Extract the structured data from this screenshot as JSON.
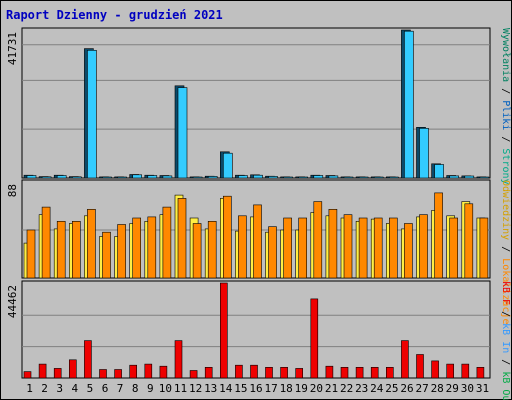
{
  "chart_data": [
    {
      "type": "bar",
      "title": "Raport Dzienny -  grudzień  2021",
      "categories": [
        "1",
        "2",
        "3",
        "4",
        "5",
        "6",
        "7",
        "8",
        "9",
        "10",
        "11",
        "12",
        "13",
        "14",
        "15",
        "16",
        "17",
        "18",
        "19",
        "20",
        "21",
        "22",
        "23",
        "24",
        "25",
        "26",
        "27",
        "28",
        "29",
        "30",
        "31"
      ],
      "weekend_categories": [
        "4",
        "5",
        "11",
        "12",
        "18",
        "19",
        "25",
        "26"
      ],
      "ymax_label": "41731",
      "ylim": [
        0,
        41731
      ],
      "series": [
        {
          "name": "Wywołania",
          "color": "#0b4a6a",
          "values": [
            800,
            400,
            800,
            400,
            36500,
            300,
            300,
            1000,
            800,
            700,
            26000,
            300,
            500,
            7400,
            800,
            900,
            500,
            300,
            300,
            800,
            700,
            300,
            300,
            300,
            300,
            41731,
            14300,
            4000,
            700,
            600,
            300
          ]
        },
        {
          "name": "Pliki",
          "color": "#33ccff",
          "values": [
            700,
            350,
            700,
            350,
            36000,
            250,
            250,
            900,
            700,
            600,
            25500,
            250,
            450,
            7000,
            700,
            800,
            450,
            250,
            250,
            700,
            600,
            250,
            250,
            250,
            250,
            41400,
            14000,
            3800,
            600,
            550,
            250
          ]
        }
      ],
      "legend": [
        "Wywołania",
        "Pliki",
        "Strony"
      ]
    },
    {
      "type": "bar",
      "ymax_label": "88",
      "ylim": [
        0,
        88
      ],
      "series": [
        {
          "name": "Odwiedziny",
          "color": "#ffee44",
          "values": [
            32,
            58,
            45,
            50,
            57,
            38,
            38,
            50,
            52,
            58,
            76,
            55,
            45,
            73,
            43,
            56,
            42,
            44,
            44,
            60,
            57,
            55,
            52,
            54,
            50,
            45,
            56,
            62,
            57,
            70,
            55
          ]
        },
        {
          "name": "Lokalizacje",
          "color": "#ff8800",
          "values": [
            44,
            65,
            52,
            52,
            63,
            42,
            49,
            55,
            56,
            65,
            73,
            50,
            52,
            75,
            57,
            67,
            47,
            55,
            55,
            70,
            63,
            58,
            55,
            55,
            55,
            50,
            58,
            78,
            55,
            68,
            55
          ]
        }
      ],
      "legend": [
        "Odwiedziny",
        "Lokalizacje"
      ]
    },
    {
      "type": "bar",
      "ymax_label": "44462",
      "ylim": [
        0,
        44462
      ],
      "series": [
        {
          "name": "kB F",
          "color": "#ee0000",
          "values": [
            3000,
            6500,
            4500,
            8500,
            17500,
            4000,
            4000,
            6000,
            6500,
            5500,
            17500,
            3500,
            5000,
            44462,
            6000,
            6000,
            5000,
            5000,
            4500,
            37000,
            5500,
            5000,
            5000,
            5000,
            5000,
            17500,
            11000,
            8000,
            6500,
            6500,
            5000
          ]
        }
      ],
      "legend": [
        "kB F",
        "kB In",
        "kB Out"
      ]
    }
  ],
  "header": {
    "title": "Raport Dzienny -  grudzień  2021"
  },
  "side_labels": {
    "top": [
      {
        "text": "Wywołania",
        "color": "#008060"
      },
      {
        "text": " / ",
        "color": "#000000"
      },
      {
        "text": "Pliki",
        "color": "#0060c0"
      },
      {
        "text": " / ",
        "color": "#000000"
      },
      {
        "text": "Strony",
        "color": "#00aa88"
      }
    ],
    "middle": [
      {
        "text": "Odwiedziny",
        "color": "#d4a000"
      },
      {
        "text": " / ",
        "color": "#000000"
      },
      {
        "text": "Lokalizacje",
        "color": "#ff8800"
      }
    ],
    "bottom": [
      {
        "text": "kB F",
        "color": "#ee0000"
      },
      {
        "text": " / ",
        "color": "#000000"
      },
      {
        "text": "kB In",
        "color": "#3399ff"
      },
      {
        "text": " / ",
        "color": "#000000"
      },
      {
        "text": "kB Out",
        "color": "#00aa44"
      }
    ]
  },
  "colors": {
    "background": "#c0c0c0",
    "panel": "#c0c0c0",
    "weekday_label": "#000000",
    "weekend_label": "#008040"
  }
}
